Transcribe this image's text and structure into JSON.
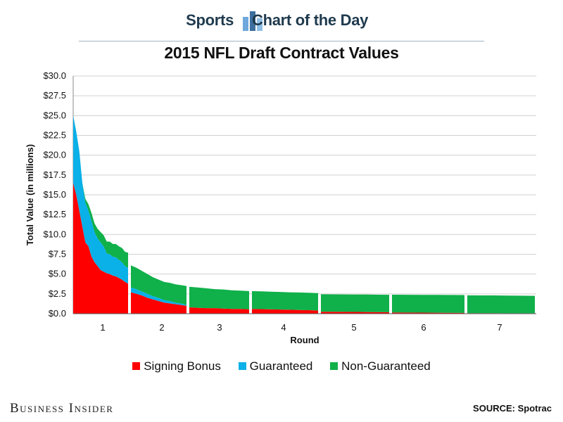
{
  "header": {
    "left_label": "Sports",
    "right_label": "Chart of the Day"
  },
  "footer": {
    "brand": "Business Insider",
    "source": "SOURCE: Spotrac"
  },
  "colors": {
    "signing_bonus": "#ff0000",
    "guaranteed": "#0ab0e8",
    "non_guaranteed": "#10b04a",
    "header_text": "#1f3a4d"
  },
  "chart_data": {
    "type": "area",
    "title": "2015 NFL Draft Contract Values",
    "xlabel": "Round",
    "ylabel": "Total Value (in millions)",
    "ylim": [
      0,
      30
    ],
    "y_ticks": [
      "$0.0",
      "$2.5",
      "$5.0",
      "$7.5",
      "$10.0",
      "$12.5",
      "$15.0",
      "$17.5",
      "$20.0",
      "$22.5",
      "$25.0",
      "$27.5",
      "$30.0"
    ],
    "x_ticks": [
      "1",
      "2",
      "3",
      "4",
      "5",
      "6",
      "7"
    ],
    "grid": true,
    "legend_position": "bottom",
    "stacked": true,
    "rounds": [
      {
        "round": "1",
        "signing_bonus": [
          16.5,
          15.0,
          13.0,
          11.0,
          9.0,
          8.5,
          7.2,
          6.5,
          6.0,
          5.5,
          5.3,
          5.1,
          5.0,
          4.8,
          4.7,
          4.5,
          4.3,
          4.0,
          3.8
        ],
        "guaranteed": [
          8.5,
          8.0,
          7.5,
          5.5,
          5.0,
          4.5,
          4.5,
          3.8,
          3.5,
          3.5,
          3.2,
          2.5,
          2.5,
          2.4,
          2.4,
          2.3,
          2.2,
          2.0,
          2.0
        ],
        "non_guaranteed": [
          0.0,
          0.0,
          0.0,
          0.0,
          0.5,
          0.8,
          1.0,
          1.1,
          1.2,
          1.3,
          1.4,
          1.5,
          1.6,
          1.6,
          1.7,
          1.7,
          1.8,
          1.8,
          1.9
        ]
      },
      {
        "round": "2",
        "signing_bonus": [
          2.7,
          2.5,
          2.3,
          2.0,
          1.8,
          1.6,
          1.4,
          1.3,
          1.2,
          1.1,
          1.0
        ],
        "guaranteed": [
          0.6,
          0.6,
          0.5,
          0.5,
          0.4,
          0.4,
          0.3,
          0.3,
          0.2,
          0.2,
          0.1
        ],
        "non_guaranteed": [
          2.8,
          2.7,
          2.6,
          2.5,
          2.4,
          2.3,
          2.3,
          2.3,
          2.3,
          2.3,
          2.4
        ]
      },
      {
        "round": "3",
        "signing_bonus": [
          0.8,
          0.75,
          0.7,
          0.7,
          0.65,
          0.6,
          0.6,
          0.55
        ],
        "guaranteed": [
          0.0,
          0.0,
          0.0,
          0.0,
          0.0,
          0.0,
          0.0,
          0.0
        ],
        "non_guaranteed": [
          2.6,
          2.55,
          2.5,
          2.4,
          2.4,
          2.35,
          2.3,
          2.3
        ]
      },
      {
        "round": "4",
        "signing_bonus": [
          0.6,
          0.58,
          0.55,
          0.52,
          0.5,
          0.47,
          0.44,
          0.4
        ],
        "guaranteed": [
          0.0,
          0.0,
          0.0,
          0.0,
          0.0,
          0.0,
          0.0,
          0.0
        ],
        "non_guaranteed": [
          2.25,
          2.24,
          2.23,
          2.22,
          2.2,
          2.2,
          2.2,
          2.2
        ]
      },
      {
        "round": "5",
        "signing_bonus": [
          0.25,
          0.24,
          0.23,
          0.22,
          0.21,
          0.2,
          0.19
        ],
        "guaranteed": [
          0.0,
          0.0,
          0.0,
          0.0,
          0.0,
          0.0,
          0.0
        ],
        "non_guaranteed": [
          2.2,
          2.2,
          2.2,
          2.2,
          2.2,
          2.2,
          2.2
        ]
      },
      {
        "round": "6",
        "signing_bonus": [
          0.15,
          0.14,
          0.13,
          0.12,
          0.11,
          0.1
        ],
        "guaranteed": [
          0.0,
          0.0,
          0.0,
          0.0,
          0.0,
          0.0
        ],
        "non_guaranteed": [
          2.25,
          2.25,
          2.25,
          2.25,
          2.25,
          2.25
        ]
      },
      {
        "round": "7",
        "signing_bonus": [
          0.07,
          0.06,
          0.06,
          0.05,
          0.05,
          0.05
        ],
        "guaranteed": [
          0.0,
          0.0,
          0.0,
          0.0,
          0.0,
          0.0
        ],
        "non_guaranteed": [
          2.25,
          2.25,
          2.25,
          2.23,
          2.22,
          2.2
        ]
      }
    ],
    "series": [
      {
        "name": "Signing Bonus",
        "key": "signing_bonus",
        "color": "#ff0000"
      },
      {
        "name": "Guaranteed",
        "key": "guaranteed",
        "color": "#0ab0e8"
      },
      {
        "name": "Non-Guaranteed",
        "key": "non_guaranteed",
        "color": "#10b04a"
      }
    ]
  }
}
